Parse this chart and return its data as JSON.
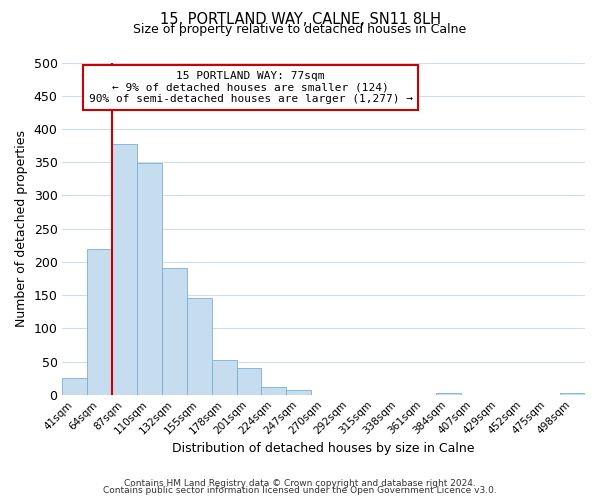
{
  "title": "15, PORTLAND WAY, CALNE, SN11 8LH",
  "subtitle": "Size of property relative to detached houses in Calne",
  "xlabel": "Distribution of detached houses by size in Calne",
  "ylabel": "Number of detached properties",
  "bar_color": "#c6ddf0",
  "bar_edgecolor": "#7aafd4",
  "grid_color": "#d0dce8",
  "background_color": "#ffffff",
  "bin_labels": [
    "41sqm",
    "64sqm",
    "87sqm",
    "110sqm",
    "132sqm",
    "155sqm",
    "178sqm",
    "201sqm",
    "224sqm",
    "247sqm",
    "270sqm",
    "292sqm",
    "315sqm",
    "338sqm",
    "361sqm",
    "384sqm",
    "407sqm",
    "429sqm",
    "452sqm",
    "475sqm",
    "498sqm"
  ],
  "bar_heights": [
    25,
    220,
    378,
    348,
    190,
    146,
    53,
    40,
    12,
    7,
    0,
    0,
    0,
    0,
    0,
    2,
    0,
    0,
    0,
    0,
    2
  ],
  "ylim": [
    0,
    500
  ],
  "yticks": [
    0,
    50,
    100,
    150,
    200,
    250,
    300,
    350,
    400,
    450,
    500
  ],
  "marker_label": "15 PORTLAND WAY: 77sqm",
  "annotation_line1": "← 9% of detached houses are smaller (124)",
  "annotation_line2": "90% of semi-detached houses are larger (1,277) →",
  "marker_color": "#cc0000",
  "footnote1": "Contains HM Land Registry data © Crown copyright and database right 2024.",
  "footnote2": "Contains public sector information licensed under the Open Government Licence v3.0."
}
